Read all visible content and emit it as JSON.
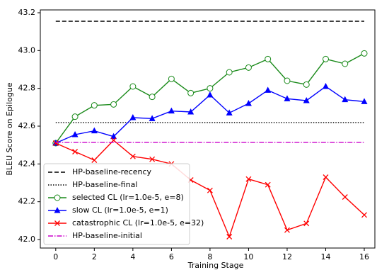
{
  "chart_data": {
    "type": "line",
    "xlabel": "Training Stage",
    "ylabel": "BLEU Score on Epilogue",
    "x": [
      0,
      1,
      2,
      3,
      4,
      5,
      6,
      7,
      8,
      9,
      10,
      11,
      12,
      13,
      14,
      15,
      16
    ],
    "xlim": [
      -0.8,
      16.55
    ],
    "xticks": [
      0,
      2,
      4,
      6,
      8,
      10,
      12,
      14,
      16
    ],
    "ylim": [
      41.955,
      43.215
    ],
    "yticks": [
      {
        "value": 42,
        "label": "42.0"
      },
      42.2,
      42.4,
      42.6,
      42.8,
      {
        "value": 43,
        "label": "43.0"
      },
      43.2
    ],
    "legend": "lower left",
    "series": [
      {
        "name": "HP-baseline-recency",
        "color": "#000000",
        "dash": "6,3",
        "marker": "none",
        "values": [
          43.155,
          43.155,
          43.155,
          43.155,
          43.155,
          43.155,
          43.155,
          43.155,
          43.155,
          43.155,
          43.155,
          43.155,
          43.155,
          43.155,
          43.155,
          43.155,
          43.155
        ]
      },
      {
        "name": "HP-baseline-final",
        "color": "#000000",
        "dash": "1.5,2",
        "marker": "none",
        "values": [
          42.619,
          42.619,
          42.619,
          42.619,
          42.619,
          42.619,
          42.619,
          42.619,
          42.619,
          42.619,
          42.619,
          42.619,
          42.619,
          42.619,
          42.619,
          42.619,
          42.619
        ]
      },
      {
        "name": "selected CL (lr=1.0e-5, e=8)",
        "color": "#1a8a1a",
        "dash": "",
        "marker": "circle",
        "values": [
          42.51,
          42.65,
          42.71,
          42.715,
          42.81,
          42.755,
          42.85,
          42.775,
          42.8,
          42.885,
          42.91,
          42.955,
          42.84,
          42.82,
          42.955,
          42.93,
          42.985
        ]
      },
      {
        "name": "slow CL (lr=1.0e-5, e=1)",
        "color": "#0000ff",
        "dash": "",
        "marker": "triangle",
        "values": [
          42.51,
          42.555,
          42.575,
          42.545,
          42.645,
          42.64,
          42.68,
          42.675,
          42.765,
          42.67,
          42.72,
          42.79,
          42.745,
          42.735,
          42.81,
          42.74,
          42.73
        ]
      },
      {
        "name": "catastrophic CL (lr=1.0e-5, e=32)",
        "color": "#ff0000",
        "dash": "",
        "marker": "x",
        "values": [
          42.51,
          42.465,
          42.42,
          42.525,
          42.44,
          42.425,
          42.4,
          42.315,
          42.26,
          42.015,
          42.32,
          42.29,
          42.05,
          42.085,
          42.33,
          42.225,
          42.13
        ]
      },
      {
        "name": "HP-baseline-initial",
        "color": "#cc00cc",
        "dash": "7,2,1.5,2",
        "marker": "none",
        "values": [
          42.514,
          42.514,
          42.514,
          42.514,
          42.514,
          42.514,
          42.514,
          42.514,
          42.514,
          42.514,
          42.514,
          42.514,
          42.514,
          42.514,
          42.514,
          42.514,
          42.514
        ]
      }
    ]
  }
}
